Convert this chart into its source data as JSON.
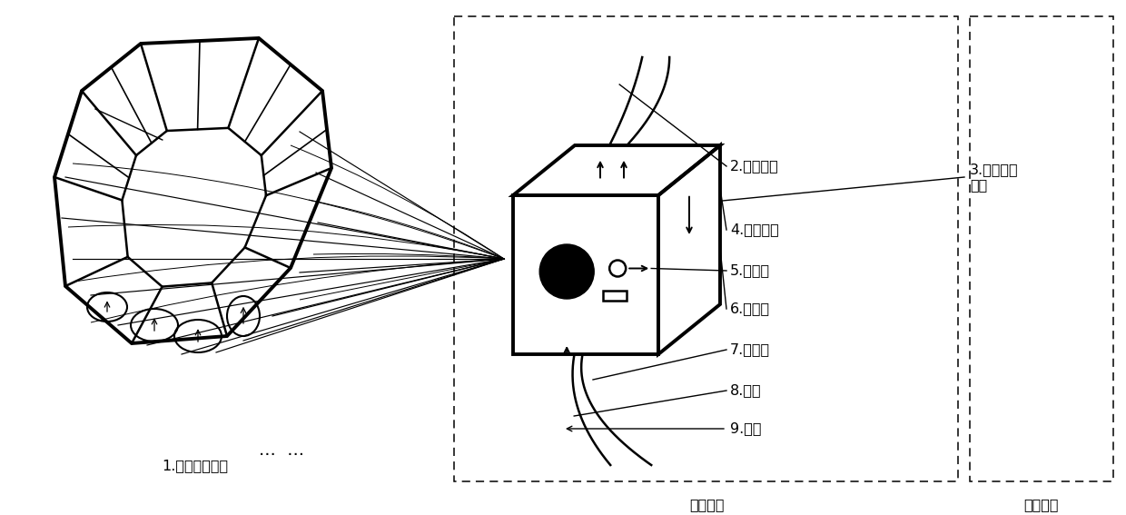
{
  "bg_color": "#ffffff",
  "labels": {
    "1": "1.肌电传感器组",
    "2": "2.运算单元",
    "3": "3.射频收发\n芯片",
    "4": "4.振动马达",
    "5": "5.指示灯",
    "6": "6.锂电池",
    "7": "7.充电口",
    "8": "8.按钮",
    "9": "9.绑带"
  },
  "box1_label": "控制单元",
  "box2_label": "发送单元",
  "dots": "···  ···"
}
